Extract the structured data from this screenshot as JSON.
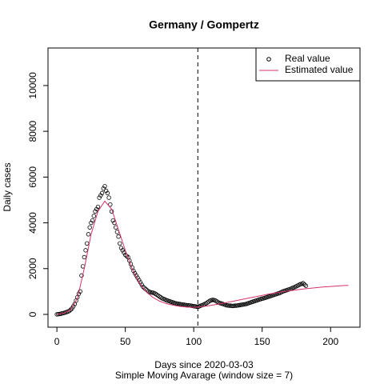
{
  "chart_data": {
    "type": "scatter-line",
    "title": "Germany / Gompertz",
    "xlabel": "Days since 2020-03-03",
    "subtitle": "Simple Moving Avarage (window size = 7)",
    "ylabel": "Daily cases",
    "xlim": [
      -6.5,
      221.5
    ],
    "ylim": [
      -560,
      11640
    ],
    "xticks": [
      0,
      50,
      100,
      150,
      200
    ],
    "yticks": [
      0,
      2000,
      4000,
      6000,
      8000,
      10000
    ],
    "vline": 103,
    "legend": "top-right",
    "series": [
      {
        "name": "Real value",
        "color": "#000000",
        "x": [
          0,
          1,
          2,
          3,
          4,
          5,
          6,
          7,
          8,
          9,
          10,
          11,
          12,
          13,
          14,
          15,
          16,
          17,
          18,
          19,
          20,
          21,
          22,
          23,
          24,
          25,
          26,
          27,
          28,
          29,
          30,
          31,
          32,
          33,
          34,
          35,
          36,
          37,
          38,
          39,
          40,
          41,
          42,
          43,
          44,
          45,
          46,
          47,
          48,
          49,
          50,
          51,
          52,
          53,
          54,
          55,
          56,
          57,
          58,
          59,
          60,
          61,
          62,
          63,
          64,
          65,
          66,
          67,
          68,
          69,
          70,
          71,
          72,
          73,
          74,
          75,
          76,
          77,
          78,
          79,
          80,
          81,
          82,
          83,
          84,
          85,
          86,
          87,
          88,
          89,
          90,
          91,
          92,
          93,
          94,
          95,
          96,
          97,
          98,
          99,
          100,
          101,
          102,
          103,
          104,
          105,
          106,
          107,
          108,
          109,
          110,
          111,
          112,
          113,
          114,
          115,
          116,
          117,
          118,
          119,
          120,
          121,
          122,
          123,
          124,
          125,
          126,
          127,
          128,
          129,
          130,
          131,
          132,
          133,
          134,
          135,
          136,
          137,
          138,
          139,
          140,
          141,
          142,
          143,
          144,
          145,
          146,
          147,
          148,
          149,
          150,
          151,
          152,
          153,
          154,
          155,
          156,
          157,
          158,
          159,
          160,
          161,
          162,
          163,
          164,
          165,
          166,
          167,
          168,
          169,
          170,
          171,
          172,
          173,
          174,
          175,
          176,
          177,
          178,
          179,
          180,
          181,
          182
        ],
        "values": [
          0,
          10,
          20,
          30,
          50,
          60,
          80,
          100,
          120,
          150,
          200,
          260,
          350,
          450,
          600,
          750,
          900,
          1000,
          1700,
          2100,
          2500,
          2800,
          3100,
          3500,
          3800,
          4000,
          4100,
          4300,
          4500,
          4600,
          4700,
          5100,
          5200,
          5300,
          5500,
          5600,
          5400,
          5300,
          5100,
          4800,
          4500,
          4100,
          4000,
          3800,
          3600,
          3400,
          3100,
          2900,
          2800,
          2700,
          2600,
          2550,
          2500,
          2350,
          2200,
          2050,
          1900,
          1800,
          1700,
          1600,
          1500,
          1400,
          1300,
          1200,
          1150,
          1100,
          1050,
          1000,
          980,
          960,
          950,
          930,
          900,
          860,
          820,
          780,
          740,
          700,
          680,
          650,
          620,
          600,
          580,
          560,
          540,
          520,
          500,
          480,
          470,
          460,
          450,
          440,
          430,
          420,
          410,
          400,
          400,
          390,
          380,
          370,
          360,
          350,
          340,
          330,
          350,
          380,
          400,
          420,
          450,
          480,
          520,
          560,
          600,
          620,
          640,
          620,
          600,
          560,
          520,
          500,
          480,
          460,
          440,
          420,
          400,
          390,
          380,
          380,
          370,
          370,
          380,
          380,
          390,
          400,
          410,
          420,
          430,
          440,
          450,
          470,
          490,
          510,
          530,
          550,
          570,
          590,
          610,
          630,
          650,
          670,
          690,
          700,
          720,
          740,
          760,
          780,
          800,
          820,
          840,
          860,
          880,
          900,
          920,
          940,
          970,
          1000,
          1020,
          1040,
          1060,
          1080,
          1100,
          1120,
          1150,
          1170,
          1200,
          1230,
          1260,
          1290,
          1320,
          1340,
          1360,
          1300,
          1250
        ]
      },
      {
        "name": "Estimated value",
        "color": "#d6336c",
        "x": [
          0,
          5,
          10,
          15,
          20,
          25,
          30,
          35,
          40,
          45,
          50,
          55,
          60,
          65,
          70,
          75,
          80,
          85,
          90,
          95,
          100,
          105,
          110,
          115,
          120,
          125,
          130,
          135,
          140,
          145,
          150,
          155,
          160,
          165,
          170,
          175,
          180,
          185,
          190,
          195,
          200,
          205,
          210,
          213
        ],
        "values": [
          0,
          50,
          200,
          700,
          2000,
          3500,
          4500,
          4950,
          4600,
          3700,
          2800,
          2000,
          1400,
          1000,
          750,
          580,
          470,
          400,
          350,
          320,
          310,
          330,
          370,
          420,
          470,
          530,
          590,
          650,
          710,
          770,
          830,
          890,
          940,
          990,
          1030,
          1070,
          1110,
          1140,
          1170,
          1200,
          1220,
          1240,
          1260,
          1265
        ]
      }
    ]
  }
}
